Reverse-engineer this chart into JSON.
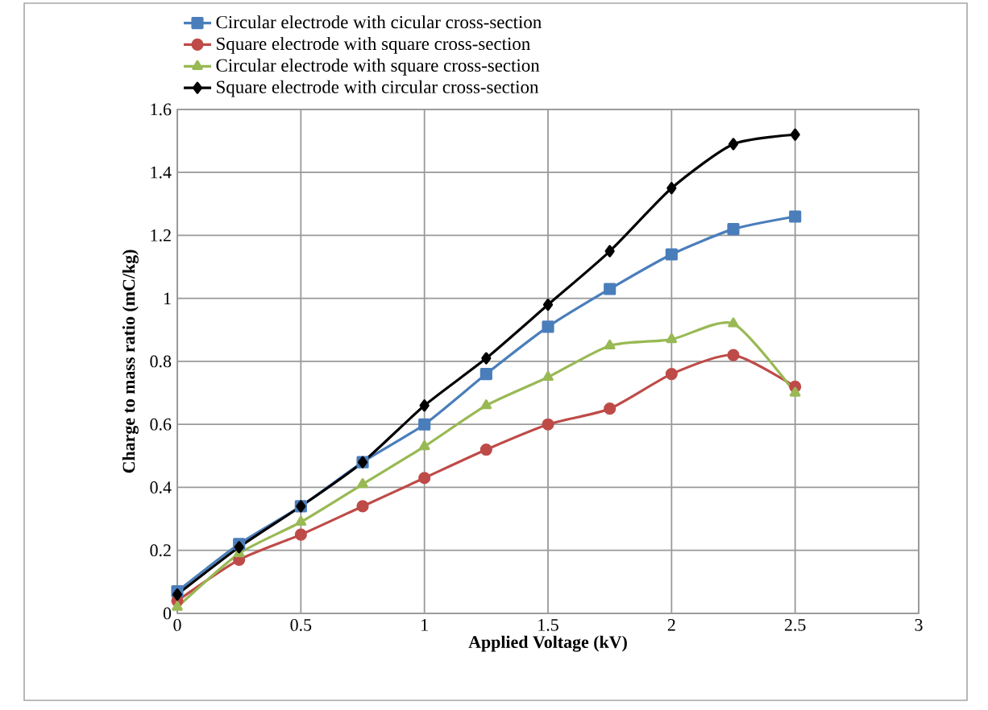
{
  "chart_data": {
    "type": "line",
    "xlabel": "Applied Voltage (kV)",
    "ylabel": "Charge to mass ratio (mC/kg)",
    "x": [
      0,
      0.25,
      0.5,
      0.75,
      1,
      1.25,
      1.5,
      1.75,
      2,
      2.25,
      2.5
    ],
    "series": [
      {
        "name": "Circular electrode with cicular cross-section",
        "color": "#4a7ebb",
        "marker": "square",
        "values": [
          0.07,
          0.22,
          0.34,
          0.48,
          0.6,
          0.76,
          0.91,
          1.03,
          1.14,
          1.22,
          1.26
        ]
      },
      {
        "name": "Square electrode with square cross-section",
        "color": "#be4b48",
        "marker": "circle",
        "values": [
          0.04,
          0.17,
          0.25,
          0.34,
          0.43,
          0.52,
          0.6,
          0.65,
          0.76,
          0.82,
          0.72
        ]
      },
      {
        "name": "Circular electrode with square cross-section",
        "color": "#98b954",
        "marker": "triangle",
        "values": [
          0.02,
          0.19,
          0.29,
          0.41,
          0.53,
          0.66,
          0.75,
          0.85,
          0.87,
          0.92,
          0.7
        ]
      },
      {
        "name": "Square electrode with circular cross-section",
        "color": "#000000",
        "marker": "diamond",
        "values": [
          0.06,
          0.21,
          0.34,
          0.48,
          0.66,
          0.81,
          0.98,
          1.15,
          1.35,
          1.49,
          1.52
        ]
      }
    ],
    "xlim": [
      0,
      3
    ],
    "xticks": [
      0,
      0.5,
      1,
      1.5,
      2,
      2.5,
      3
    ],
    "ylim": [
      0,
      1.6
    ],
    "yticks": [
      0,
      {
        "value": 0.2,
        "label": "0.2"
      },
      {
        "value": 0.4,
        "label": "0.4"
      },
      {
        "value": 0.6,
        "label": "0.6"
      },
      {
        "value": 0.8,
        "label": "0.8"
      },
      1,
      {
        "value": 1.2,
        "label": "1.2"
      },
      {
        "value": 1.4,
        "label": "1.4"
      },
      {
        "value": 1.6,
        "label": "1.6"
      }
    ],
    "grid": true,
    "legend": "top left",
    "line_style": "solid"
  }
}
